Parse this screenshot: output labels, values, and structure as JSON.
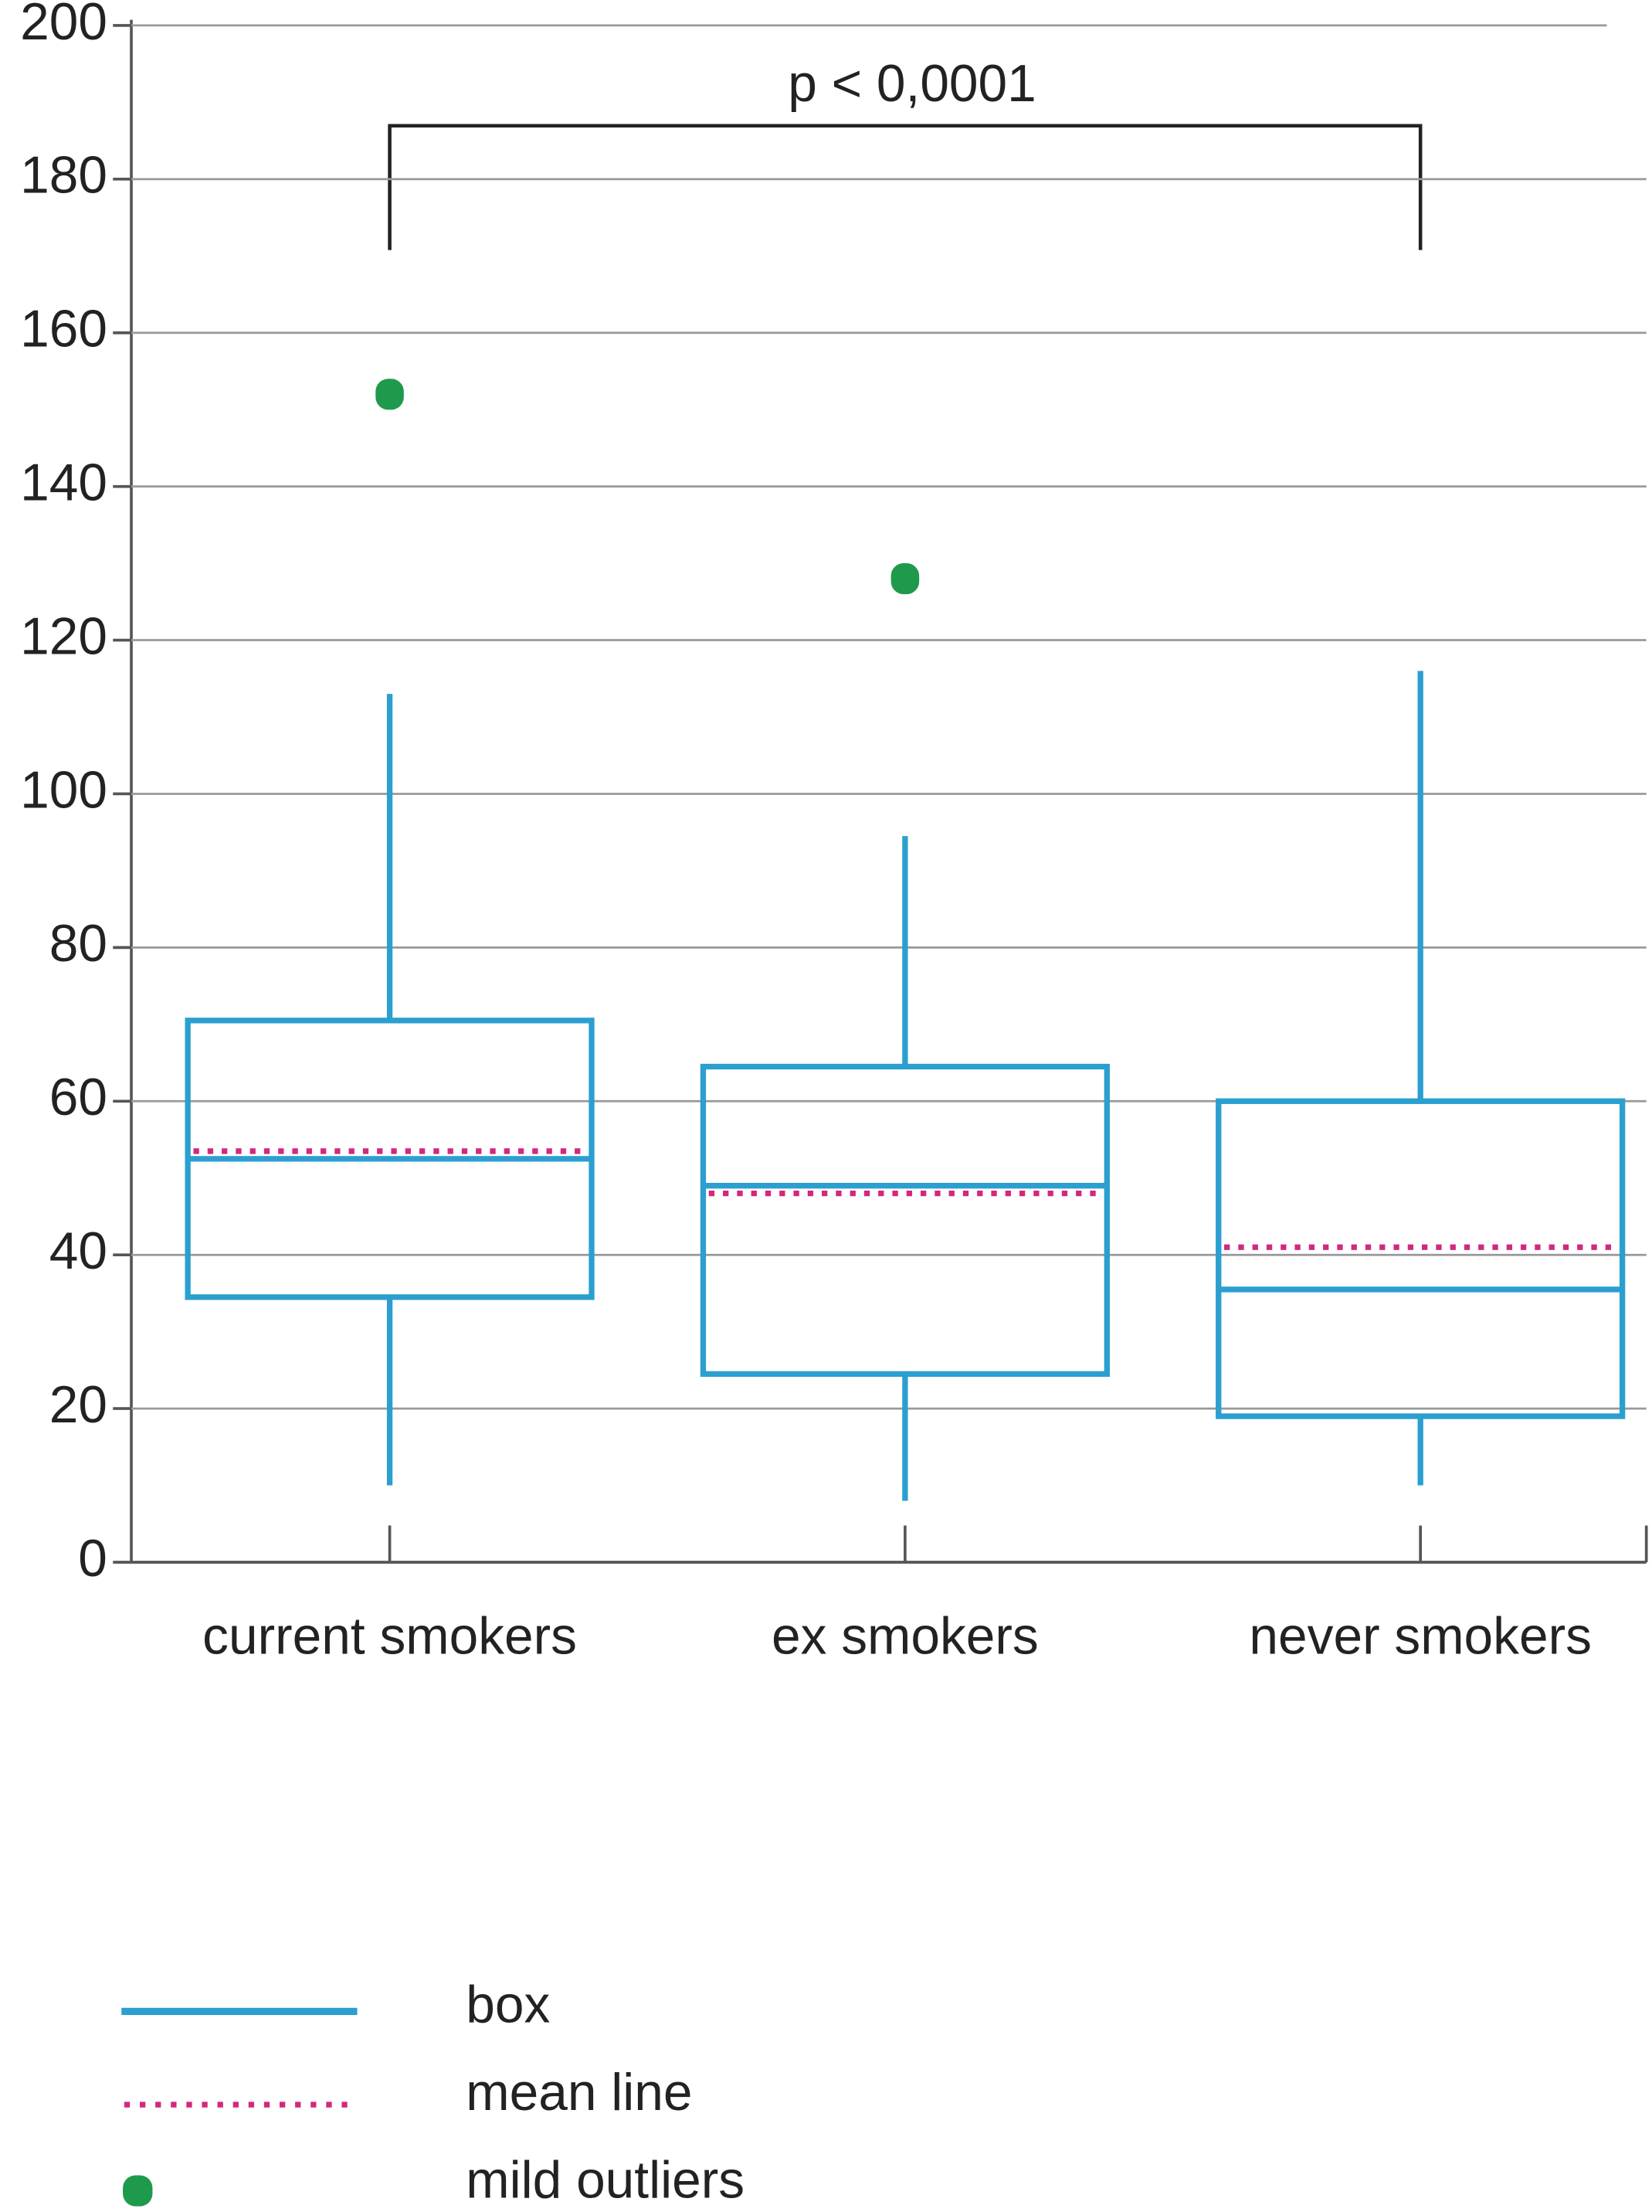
{
  "chart_data": {
    "type": "box",
    "annotation": "p < 0,0001",
    "categories": [
      "current smokers",
      "ex smokers",
      "never smokers"
    ],
    "boxes": [
      {
        "whislo": 10,
        "q1": 34.5,
        "med": 52.5,
        "q3": 70.5,
        "whishi": 113,
        "mean": 53.5,
        "fliers": [
          152
        ]
      },
      {
        "whislo": 8,
        "q1": 24.5,
        "med": 49,
        "q3": 64.5,
        "whishi": 94.5,
        "mean": 48,
        "fliers": [
          128
        ]
      },
      {
        "whislo": 10,
        "q1": 19,
        "med": 35.5,
        "q3": 60,
        "whishi": 116,
        "mean": 41,
        "fliers": []
      }
    ],
    "legend": [
      {
        "name": "box",
        "color": "#2a9fd0"
      },
      {
        "name": "mean line",
        "color": "#d3287f"
      },
      {
        "name": "mild outliers",
        "color": "#1f9a4c"
      }
    ],
    "ylim": [
      0,
      200
    ],
    "yticks": [
      0,
      20,
      40,
      60,
      80,
      100,
      120,
      140,
      160,
      180,
      200
    ],
    "grid": true
  }
}
